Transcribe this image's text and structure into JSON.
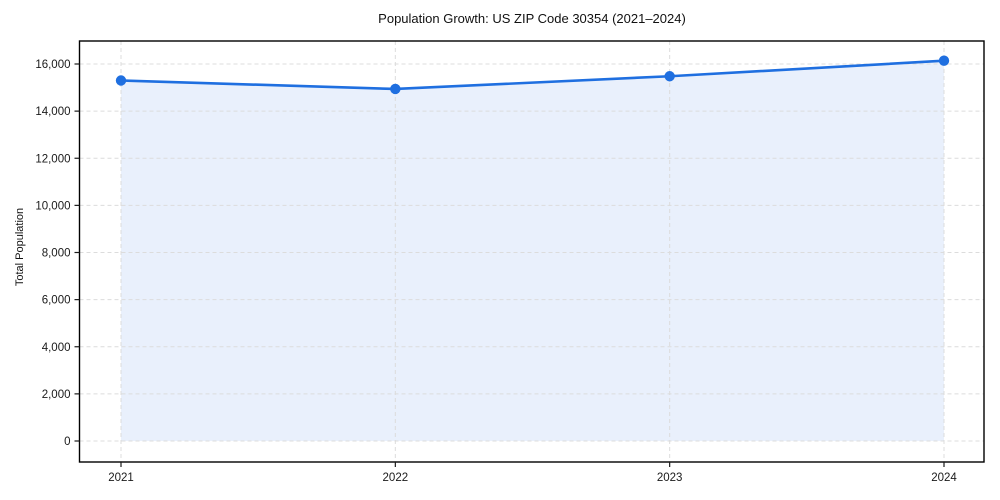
{
  "chart_data": {
    "type": "line",
    "title": "Population Growth: US ZIP Code 30354 (2021–2024)",
    "xlabel": "",
    "ylabel": "Total Population",
    "x": [
      2021,
      2022,
      2023,
      2024
    ],
    "series": [
      {
        "name": "Total Population",
        "values": [
          15300,
          14940,
          15480,
          16140
        ]
      }
    ],
    "area_fill": true,
    "markers": true,
    "legend": "none",
    "grid": "dashed-both-axes",
    "ylim": [
      0,
      17000
    ],
    "yticks": [
      0,
      2000,
      4000,
      6000,
      8000,
      10000,
      12000,
      14000,
      16000
    ],
    "ytick_labels": [
      "0",
      "2,000",
      "4,000",
      "6,000",
      "8,000",
      "10,000",
      "12,000",
      "14,000",
      "16,000"
    ],
    "xtick_labels": [
      "2021",
      "2022",
      "2023",
      "2024"
    ],
    "colors": {
      "line": "#1f6fe0",
      "fill": "#e9f0fc",
      "grid": "#dcdcdc",
      "spine": "#000000",
      "text": "#1a1a1a",
      "background": "#ffffff"
    }
  }
}
